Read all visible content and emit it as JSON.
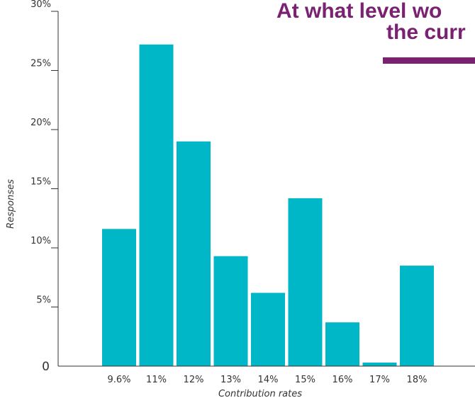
{
  "chart_data": {
    "type": "bar",
    "title_lines": [
      "At what level wo",
      "the curr"
    ],
    "xlabel": "Contribution rates",
    "ylabel": "Responses",
    "categories": [
      "9.6%",
      "11%",
      "12%",
      "13%",
      "14%",
      "15%",
      "16%",
      "17%",
      "18%"
    ],
    "values": [
      11.6,
      27.2,
      19.0,
      9.3,
      6.2,
      14.2,
      3.7,
      0.3,
      8.5
    ],
    "ylim": [
      0,
      30
    ],
    "y_ticks": [
      0,
      5,
      10,
      15,
      20,
      25,
      30
    ],
    "y_tick_labels": [
      "0",
      "5%",
      "10%",
      "15%",
      "20%",
      "25%",
      "30%"
    ],
    "grid": false,
    "legend": "none",
    "colors": {
      "bar": "#00b7c8",
      "title": "#7a2271",
      "title_underline": "#7a2271",
      "axis": "#333333"
    }
  }
}
